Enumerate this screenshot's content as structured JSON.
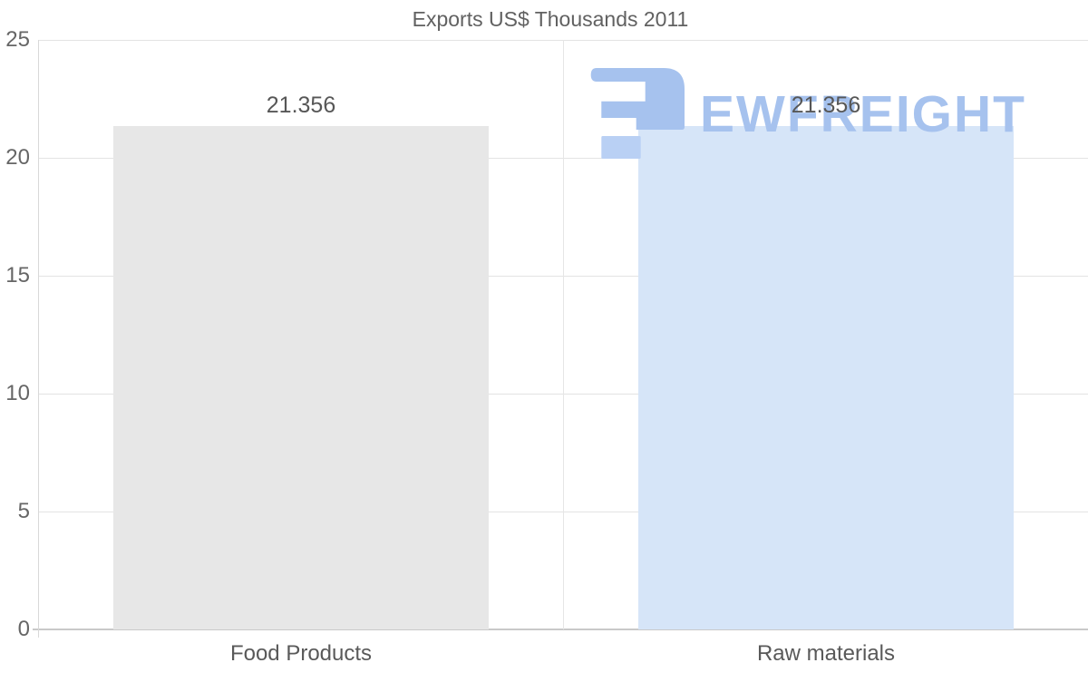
{
  "chart_data": {
    "type": "bar",
    "title": "Exports US$ Thousands 2011",
    "categories": [
      "Food Products",
      "Raw materials"
    ],
    "values": [
      21.356,
      21.356
    ],
    "value_labels": [
      "21.356",
      "21.356"
    ],
    "series": [
      {
        "name": "Exports US$ Thousands 2011",
        "values": [
          21.356,
          21.356
        ]
      }
    ],
    "bar_colors": [
      "#e7e7e7",
      "#d6e5f8"
    ],
    "xlabel": "",
    "ylabel": "",
    "ylim": [
      0,
      25
    ],
    "yticks": [
      0,
      5,
      10,
      15,
      20,
      25
    ],
    "ytick_labels": [
      "0",
      "5",
      "10",
      "15",
      "20",
      "25"
    ],
    "grid": true,
    "legend": false,
    "background": "#ffffff"
  },
  "watermark": {
    "text": "EWFREIGHT",
    "text_color": "#a6c2ee",
    "logo_main_color": "#a6c2ee",
    "logo_accent_color": "#b9d0f4",
    "icon": "ewfreight-logo-mark"
  },
  "colors": {
    "title_text": "#616161",
    "tick_text": "#666666",
    "value_label_text": "#575757",
    "gridline": "#e3e3e3",
    "zero_line": "#c9c9c9",
    "axis_line": "#d9d9d9"
  }
}
